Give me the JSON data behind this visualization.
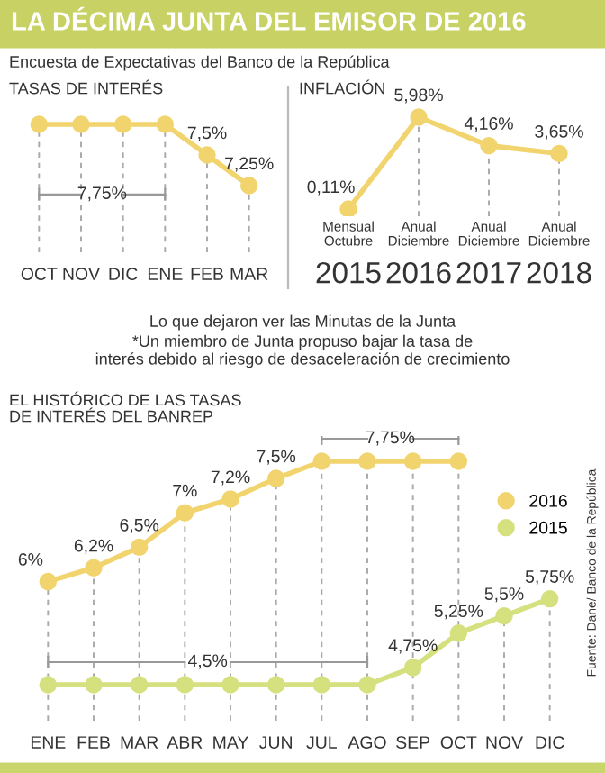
{
  "chart_data": [
    {
      "type": "line",
      "title": "TASAS DE INTERÉS",
      "annotations": [
        "LA DÉCIMA JUNTA DEL EMISOR DE 2016",
        "Encuesta de Expectativas del Banco de la República",
        "7,75%"
      ],
      "categories": [
        "OCT",
        "NOV",
        "DIC",
        "ENE",
        "FEB",
        "MAR"
      ],
      "series": [
        {
          "color": "#f2d46e",
          "values": [
            7.75,
            7.75,
            7.75,
            7.75,
            7.5,
            7.25
          ],
          "value_labels": [
            null,
            null,
            null,
            null,
            "7,5%",
            "7,25%"
          ]
        }
      ],
      "grid": "x",
      "marker": "circle",
      "line_style": "solid"
    },
    {
      "type": "line",
      "title": "INFLACIÓN",
      "annotations": [
        "Lo que dejaron ver las Minutas de la Junta",
        "*Un miembro de Junta propuso bajar la tasa de\ninterés debido al riesgo de desaceleración de crecimiento"
      ],
      "categories": [
        "Mensual\nOctubre\n2015",
        "Anual\nDiciembre\n2016",
        "Anual\nDiciembre\n2017",
        "Anual\nDiciembre\n2018"
      ],
      "series": [
        {
          "color": "#f2d46e",
          "values": [
            0.11,
            5.98,
            4.16,
            3.65
          ],
          "value_labels": [
            "0,11%",
            "5,98%",
            "4,16%",
            "3,65%"
          ]
        }
      ],
      "grid": "x",
      "marker": "circle",
      "line_style": "solid"
    },
    {
      "type": "line",
      "title": "EL HISTÓRICO DE LAS TASAS\nDE INTERÉS DEL BANREP",
      "annotations": [
        "Fuente: Dane/ Banco de la República",
        "7,75%",
        "4,5%"
      ],
      "categories": [
        "ENE",
        "FEB",
        "MAR",
        "ABR",
        "MAY",
        "JUN",
        "JUL",
        "AGO",
        "SEP",
        "OCT",
        "NOV",
        "DIC"
      ],
      "series": [
        {
          "name": "2016",
          "color": "#f2d46e",
          "values": [
            6,
            6.2,
            6.5,
            7,
            7.2,
            7.5,
            7.75,
            7.75,
            7.75,
            7.75,
            null,
            null
          ],
          "value_labels": [
            "6%",
            "6,2%",
            "6,5%",
            "7%",
            "7,2%",
            "7,5%",
            null,
            null,
            null,
            null,
            null,
            null
          ]
        },
        {
          "name": "2015",
          "color": "#d5e07e",
          "values": [
            4.5,
            4.5,
            4.5,
            4.5,
            4.5,
            4.5,
            4.5,
            4.5,
            4.75,
            5.25,
            5.5,
            5.75
          ],
          "value_labels": [
            null,
            null,
            null,
            null,
            null,
            null,
            null,
            null,
            "4,75%",
            "5,25%",
            "5,5%",
            "5,75%"
          ]
        }
      ],
      "legend": "right",
      "grid": "x",
      "marker": "circle",
      "line_style": "solid"
    }
  ]
}
